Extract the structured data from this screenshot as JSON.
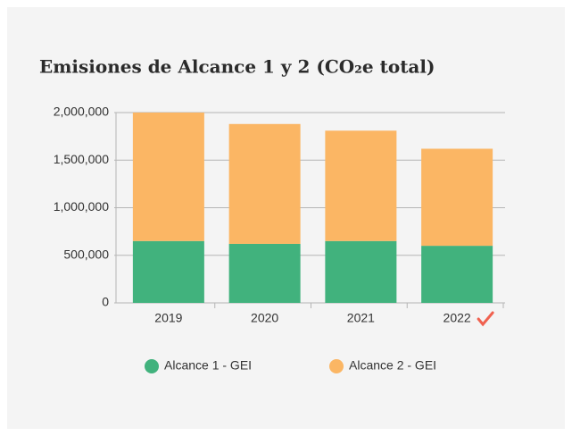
{
  "chart_data": {
    "type": "stacked_bar",
    "title": "Emisiones de Alcance 1 y 2 (CO₂e total)",
    "categories": [
      "2019",
      "2020",
      "2021",
      "2022"
    ],
    "series": [
      {
        "name": "Alcance 1 - GEI",
        "color": "#41b27d",
        "values": [
          650000,
          620000,
          650000,
          600000
        ]
      },
      {
        "name": "Alcance 2 - GEI",
        "color": "#fbb664",
        "values": [
          1350000,
          1260000,
          1160000,
          1020000
        ]
      }
    ],
    "ylim": [
      0,
      2000000
    ],
    "yticks": [
      0,
      {
        "value": 500000,
        "label": "500,000"
      },
      {
        "value": 1000000,
        "label": "1,000,000"
      },
      {
        "value": 1500000,
        "label": "1,500,000"
      },
      {
        "value": 2000000,
        "label": "2,000,000"
      }
    ],
    "grid": true
  }
}
